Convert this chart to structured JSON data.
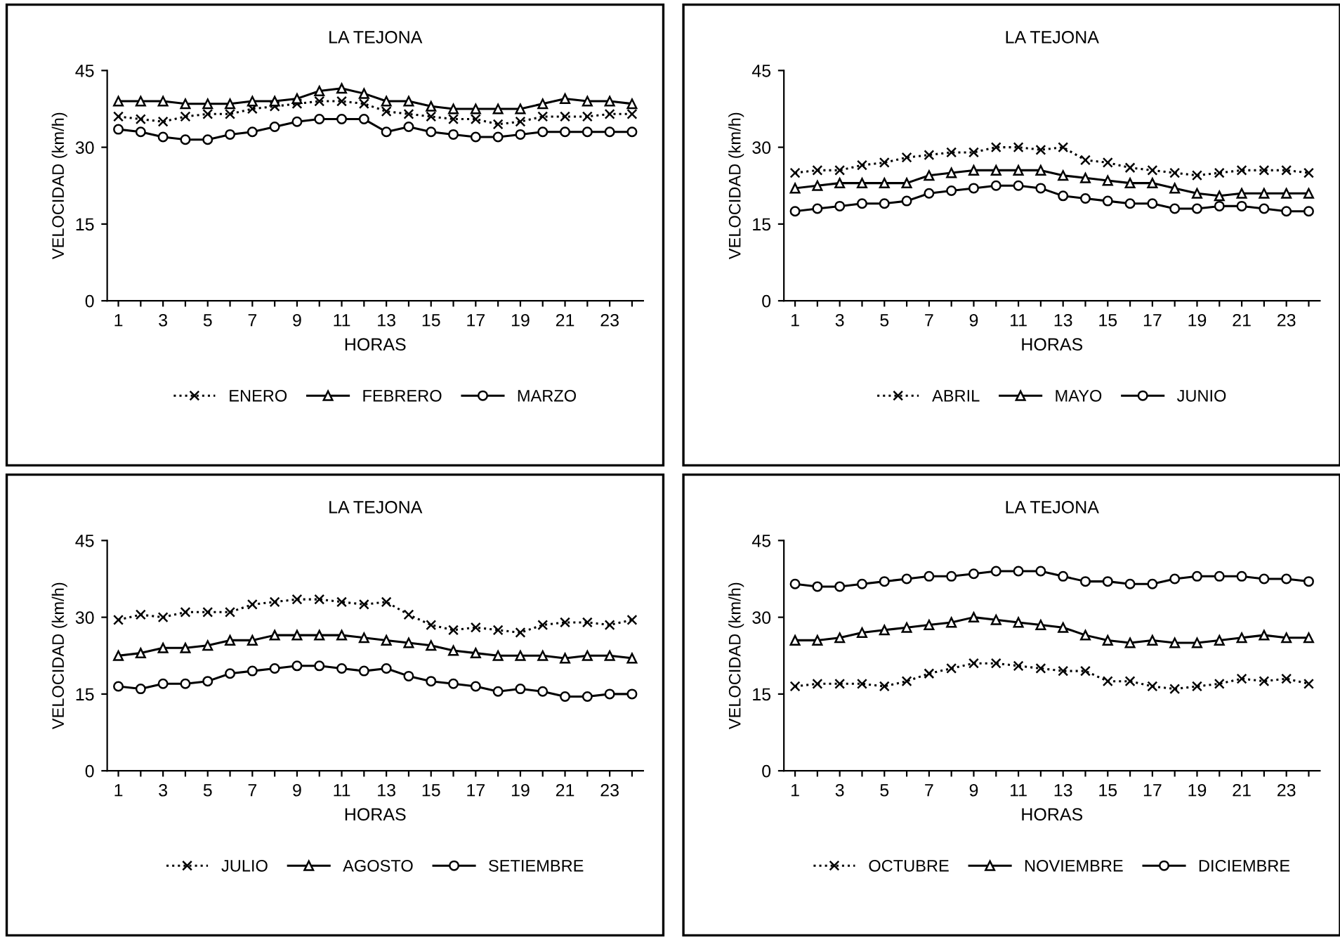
{
  "chart_data": [
    {
      "type": "line",
      "title": "LA TEJONA",
      "xlabel": "HORAS",
      "ylabel": "VELOCIDAD (km/h)",
      "x": [
        1,
        2,
        3,
        4,
        5,
        6,
        7,
        8,
        9,
        10,
        11,
        12,
        13,
        14,
        15,
        16,
        17,
        18,
        19,
        20,
        21,
        22,
        23,
        24
      ],
      "xlim": [
        0.5,
        24.5
      ],
      "xticks": [
        1,
        {
          "value": 2,
          "label": null
        },
        3,
        {
          "value": 4,
          "label": null
        },
        5,
        {
          "value": 6,
          "label": null
        },
        7,
        {
          "value": 8,
          "label": null
        },
        9,
        {
          "value": 10,
          "label": null
        },
        11,
        {
          "value": 12,
          "label": null
        },
        13,
        {
          "value": 14,
          "label": null
        },
        15,
        {
          "value": 16,
          "label": null
        },
        17,
        {
          "value": 18,
          "label": null
        },
        19,
        {
          "value": 20,
          "label": null
        },
        21,
        {
          "value": 22,
          "label": null
        },
        23,
        {
          "value": 24,
          "label": null
        }
      ],
      "ylim": [
        0,
        45
      ],
      "yticks": [
        0,
        15,
        30,
        45
      ],
      "legend": "bottom",
      "grid": false,
      "series": [
        {
          "name": "ENERO",
          "color": "#000000",
          "marker": "cross",
          "line_style": "dotted",
          "values": [
            36,
            35.5,
            35,
            36,
            36.5,
            36.5,
            37.5,
            38,
            38.5,
            39,
            39,
            38.5,
            37,
            36.5,
            36,
            35.5,
            35.5,
            34.5,
            35,
            36,
            36,
            36,
            36.5,
            36.5
          ]
        },
        {
          "name": "FEBRERO",
          "color": "#000000",
          "marker": "triangle",
          "line_style": "solid",
          "values": [
            39,
            39,
            39,
            38.5,
            38.5,
            38.5,
            39,
            39,
            39.5,
            41,
            41.5,
            40.5,
            39,
            39,
            38,
            37.5,
            37.5,
            37.5,
            37.5,
            38.5,
            39.5,
            39,
            39,
            38.5
          ]
        },
        {
          "name": "MARZO",
          "color": "#000000",
          "marker": "circle",
          "line_style": "solid",
          "values": [
            33.5,
            33,
            32,
            31.5,
            31.5,
            32.5,
            33,
            34,
            35,
            35.5,
            35.5,
            35.5,
            33,
            34,
            33,
            32.5,
            32,
            32,
            32.5,
            33,
            33,
            33,
            33,
            33
          ]
        }
      ]
    },
    {
      "type": "line",
      "title": "LA TEJONA",
      "xlabel": "HORAS",
      "ylabel": "VELOCIDAD (km/h)",
      "x": [
        1,
        2,
        3,
        4,
        5,
        6,
        7,
        8,
        9,
        10,
        11,
        12,
        13,
        14,
        15,
        16,
        17,
        18,
        19,
        20,
        21,
        22,
        23,
        24
      ],
      "xlim": [
        0.5,
        24.5
      ],
      "xticks": [
        1,
        {
          "value": 2,
          "label": null
        },
        3,
        {
          "value": 4,
          "label": null
        },
        5,
        {
          "value": 6,
          "label": null
        },
        7,
        {
          "value": 8,
          "label": null
        },
        9,
        {
          "value": 10,
          "label": null
        },
        11,
        {
          "value": 12,
          "label": null
        },
        13,
        {
          "value": 14,
          "label": null
        },
        15,
        {
          "value": 16,
          "label": null
        },
        17,
        {
          "value": 18,
          "label": null
        },
        19,
        {
          "value": 20,
          "label": null
        },
        21,
        {
          "value": 22,
          "label": null
        },
        23,
        {
          "value": 24,
          "label": null
        }
      ],
      "ylim": [
        0,
        45
      ],
      "yticks": [
        0,
        15,
        30,
        45
      ],
      "legend": "bottom",
      "grid": false,
      "series": [
        {
          "name": "ABRIL",
          "color": "#000000",
          "marker": "cross",
          "line_style": "dotted",
          "values": [
            25,
            25.5,
            25.5,
            26.5,
            27,
            28,
            28.5,
            29,
            29,
            30,
            30,
            29.5,
            30,
            27.5,
            27,
            26,
            25.5,
            25,
            24.5,
            25,
            25.5,
            25.5,
            25.5,
            25
          ]
        },
        {
          "name": "MAYO",
          "color": "#000000",
          "marker": "triangle",
          "line_style": "solid",
          "values": [
            22,
            22.5,
            23,
            23,
            23,
            23,
            24.5,
            25,
            25.5,
            25.5,
            25.5,
            25.5,
            24.5,
            24,
            23.5,
            23,
            23,
            22,
            21,
            20.5,
            21,
            21,
            21,
            21
          ]
        },
        {
          "name": "JUNIO",
          "color": "#000000",
          "marker": "circle",
          "line_style": "solid",
          "values": [
            17.5,
            18,
            18.5,
            19,
            19,
            19.5,
            21,
            21.5,
            22,
            22.5,
            22.5,
            22,
            20.5,
            20,
            19.5,
            19,
            19,
            18,
            18,
            18.5,
            18.5,
            18,
            17.5,
            17.5
          ]
        }
      ]
    },
    {
      "type": "line",
      "title": "LA TEJONA",
      "xlabel": "HORAS",
      "ylabel": "VELOCIDAD (km/h)",
      "x": [
        1,
        2,
        3,
        4,
        5,
        6,
        7,
        8,
        9,
        10,
        11,
        12,
        13,
        14,
        15,
        16,
        17,
        18,
        19,
        20,
        21,
        22,
        23,
        24
      ],
      "xlim": [
        0.5,
        24.5
      ],
      "xticks": [
        1,
        {
          "value": 2,
          "label": null
        },
        3,
        {
          "value": 4,
          "label": null
        },
        5,
        {
          "value": 6,
          "label": null
        },
        7,
        {
          "value": 8,
          "label": null
        },
        9,
        {
          "value": 10,
          "label": null
        },
        11,
        {
          "value": 12,
          "label": null
        },
        13,
        {
          "value": 14,
          "label": null
        },
        15,
        {
          "value": 16,
          "label": null
        },
        17,
        {
          "value": 18,
          "label": null
        },
        19,
        {
          "value": 20,
          "label": null
        },
        21,
        {
          "value": 22,
          "label": null
        },
        23,
        {
          "value": 24,
          "label": null
        }
      ],
      "ylim": [
        0,
        45
      ],
      "yticks": [
        0,
        15,
        30,
        45
      ],
      "legend": "bottom",
      "grid": false,
      "series": [
        {
          "name": "JULIO",
          "color": "#000000",
          "marker": "cross",
          "line_style": "dotted",
          "values": [
            29.5,
            30.5,
            30,
            31,
            31,
            31,
            32.5,
            33,
            33.5,
            33.5,
            33,
            32.5,
            33,
            30.5,
            28.5,
            27.5,
            28,
            27.5,
            27,
            28.5,
            29,
            29,
            28.5,
            29.5
          ]
        },
        {
          "name": "AGOSTO",
          "color": "#000000",
          "marker": "triangle",
          "line_style": "solid",
          "values": [
            22.5,
            23,
            24,
            24,
            24.5,
            25.5,
            25.5,
            26.5,
            26.5,
            26.5,
            26.5,
            26,
            25.5,
            25,
            24.5,
            23.5,
            23,
            22.5,
            22.5,
            22.5,
            22,
            22.5,
            22.5,
            22
          ]
        },
        {
          "name": "SETIEMBRE",
          "color": "#000000",
          "marker": "circle",
          "line_style": "solid",
          "values": [
            16.5,
            16,
            17,
            17,
            17.5,
            19,
            19.5,
            20,
            20.5,
            20.5,
            20,
            19.5,
            20,
            18.5,
            17.5,
            17,
            16.5,
            15.5,
            16,
            15.5,
            14.5,
            14.5,
            15,
            15
          ]
        }
      ]
    },
    {
      "type": "line",
      "title": "LA TEJONA",
      "xlabel": "HORAS",
      "ylabel": "VELOCIDAD (km/h)",
      "x": [
        1,
        2,
        3,
        4,
        5,
        6,
        7,
        8,
        9,
        10,
        11,
        12,
        13,
        14,
        15,
        16,
        17,
        18,
        19,
        20,
        21,
        22,
        23,
        24
      ],
      "xlim": [
        0.5,
        24.5
      ],
      "xticks": [
        1,
        {
          "value": 2,
          "label": null
        },
        3,
        {
          "value": 4,
          "label": null
        },
        5,
        {
          "value": 6,
          "label": null
        },
        7,
        {
          "value": 8,
          "label": null
        },
        9,
        {
          "value": 10,
          "label": null
        },
        11,
        {
          "value": 12,
          "label": null
        },
        13,
        {
          "value": 14,
          "label": null
        },
        15,
        {
          "value": 16,
          "label": null
        },
        17,
        {
          "value": 18,
          "label": null
        },
        19,
        {
          "value": 20,
          "label": null
        },
        21,
        {
          "value": 22,
          "label": null
        },
        23,
        {
          "value": 24,
          "label": null
        }
      ],
      "ylim": [
        0,
        45
      ],
      "yticks": [
        0,
        15,
        30,
        45
      ],
      "legend": "bottom",
      "grid": false,
      "series": [
        {
          "name": "OCTUBRE",
          "color": "#000000",
          "marker": "cross",
          "line_style": "dotted",
          "values": [
            16.5,
            17,
            17,
            17,
            16.5,
            17.5,
            19,
            20,
            21,
            21,
            20.5,
            20,
            19.5,
            19.5,
            17.5,
            17.5,
            16.5,
            16,
            16.5,
            17,
            18,
            17.5,
            18,
            17
          ]
        },
        {
          "name": "NOVIEMBRE",
          "color": "#000000",
          "marker": "triangle",
          "line_style": "solid",
          "values": [
            25.5,
            25.5,
            26,
            27,
            27.5,
            28,
            28.5,
            29,
            30,
            29.5,
            29,
            28.5,
            28,
            26.5,
            25.5,
            25,
            25.5,
            25,
            25,
            25.5,
            26,
            26.5,
            26,
            26
          ]
        },
        {
          "name": "DICIEMBRE",
          "color": "#000000",
          "marker": "circle",
          "line_style": "solid",
          "values": [
            36.5,
            36,
            36,
            36.5,
            37,
            37.5,
            38,
            38,
            38.5,
            39,
            39,
            39,
            38,
            37,
            37,
            36.5,
            36.5,
            37.5,
            38,
            38,
            38,
            37.5,
            37.5,
            37
          ]
        }
      ]
    }
  ]
}
